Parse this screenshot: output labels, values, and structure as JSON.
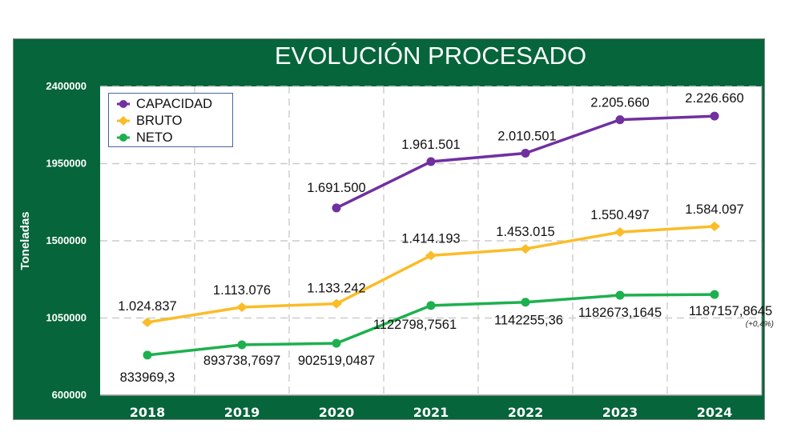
{
  "chart_data": {
    "type": "line",
    "title": "EVOLUCIÓN PROCESADO",
    "xlabel": "",
    "ylabel": "Toneladas",
    "categories": [
      "2018",
      "2019",
      "2020",
      "2021",
      "2022",
      "2023",
      "2024"
    ],
    "ylim": [
      600000,
      2400000
    ],
    "yticks": [
      600000,
      1050000,
      1500000,
      1950000,
      2400000
    ],
    "ytick_labels": [
      "600000",
      "1050000",
      "1500000",
      "1950000",
      "2400000"
    ],
    "grid": true,
    "legend_position": "top-left",
    "series": [
      {
        "name": "CAPACIDAD",
        "color": "#7030a0",
        "marker": "circle",
        "values": [
          null,
          null,
          1691500,
          1961501,
          2010501,
          2205660,
          2226660
        ],
        "labels": [
          null,
          null,
          "1.691.500",
          "1.961.501",
          "2.010.501",
          "2.205.660",
          "2.226.660"
        ]
      },
      {
        "name": "BRUTO",
        "color": "#fbbc28",
        "marker": "diamond",
        "values": [
          1024837,
          1113076,
          1133242,
          1414193,
          1453015,
          1550497,
          1584097
        ],
        "labels": [
          "1.024.837",
          "1.113.076",
          "1.133.242",
          "1.414.193",
          "1.453.015",
          "1.550.497",
          "1.584.097"
        ]
      },
      {
        "name": "NETO",
        "color": "#1db04e",
        "marker": "circle",
        "values": [
          833969.3,
          893738.7697,
          902519.0487,
          1122798.7561,
          1142255.36,
          1182673.1645,
          1187157.8645
        ],
        "labels": [
          "833969,3",
          "893738,7697",
          "902519,0487",
          "1122798,7561",
          "1142255,36",
          "1182673,1645",
          "1187157,8645"
        ]
      }
    ],
    "annotations": [
      {
        "text": "(+0,4%)",
        "series": "NETO",
        "category": "2024"
      }
    ]
  },
  "colors": {
    "frame": "#06653a",
    "plot_background": "#ffffff",
    "grid": "#cccccc",
    "legend_border": "#4a63a8"
  }
}
